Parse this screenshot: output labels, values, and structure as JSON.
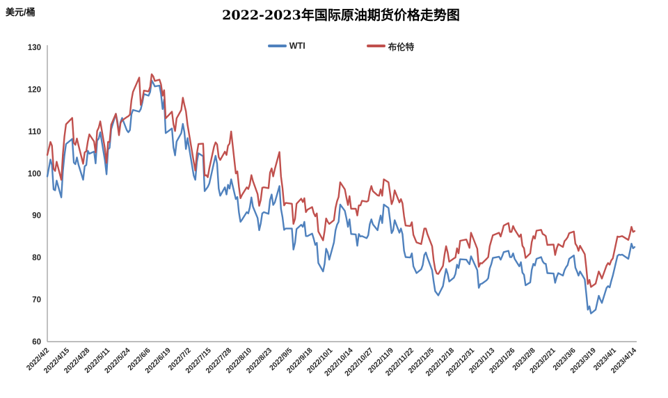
{
  "chart_data": {
    "type": "line",
    "title": "2022-2023年国际原油期货价格走势图",
    "unit": "美元/桶",
    "xlabel": "",
    "ylabel": "美元/桶",
    "ylim": [
      60,
      130
    ],
    "y_ticks": [
      60,
      70,
      80,
      90,
      100,
      110,
      120,
      130
    ],
    "grid": false,
    "legend_position": "top-center",
    "x_tick_labels": [
      "2022/4/2",
      "2022/4/15",
      "2022/4/28",
      "2022/5/11",
      "2022/5/24",
      "2022/6/6",
      "2022/6/19",
      "2022/7/2",
      "2022/7/15",
      "2022/7/28",
      "2022/8/10",
      "2022/8/23",
      "2022/9/5",
      "2022/9/18",
      "2022/10/1",
      "2022/10/14",
      "2022/10/27",
      "2022/11/9",
      "2022/11/22",
      "2022/12/5",
      "2022/12/18",
      "2022/12/31",
      "2023/1/13",
      "2023/1/26",
      "2023/2/8",
      "2023/2/21",
      "2023/3/6",
      "2023/3/19",
      "2023/4/1",
      "2023/4/14"
    ],
    "x_tick_interval_days": 13,
    "x_range": [
      "2022/4/2",
      "2023/4/14"
    ],
    "dates": [
      "2022/4/1",
      "2022/4/4",
      "2022/4/5",
      "2022/4/6",
      "2022/4/7",
      "2022/4/8",
      "2022/4/11",
      "2022/4/12",
      "2022/4/13",
      "2022/4/14",
      "2022/4/18",
      "2022/4/19",
      "2022/4/20",
      "2022/4/21",
      "2022/4/22",
      "2022/4/25",
      "2022/4/26",
      "2022/4/27",
      "2022/4/28",
      "2022/4/29",
      "2022/5/2",
      "2022/5/3",
      "2022/5/4",
      "2022/5/5",
      "2022/5/6",
      "2022/5/9",
      "2022/5/10",
      "2022/5/11",
      "2022/5/12",
      "2022/5/13",
      "2022/5/16",
      "2022/5/17",
      "2022/5/18",
      "2022/5/19",
      "2022/5/20",
      "2022/5/23",
      "2022/5/24",
      "2022/5/25",
      "2022/5/26",
      "2022/5/27",
      "2022/5/31",
      "2022/6/1",
      "2022/6/2",
      "2022/6/3",
      "2022/6/6",
      "2022/6/7",
      "2022/6/8",
      "2022/6/9",
      "2022/6/10",
      "2022/6/13",
      "2022/6/14",
      "2022/6/15",
      "2022/6/16",
      "2022/6/17",
      "2022/6/21",
      "2022/6/22",
      "2022/6/23",
      "2022/6/24",
      "2022/6/27",
      "2022/6/28",
      "2022/6/29",
      "2022/6/30",
      "2022/7/1",
      "2022/7/5",
      "2022/7/6",
      "2022/7/7",
      "2022/7/8",
      "2022/7/11",
      "2022/7/12",
      "2022/7/13",
      "2022/7/14",
      "2022/7/15",
      "2022/7/18",
      "2022/7/19",
      "2022/7/20",
      "2022/7/21",
      "2022/7/22",
      "2022/7/25",
      "2022/7/26",
      "2022/7/27",
      "2022/7/28",
      "2022/7/29",
      "2022/8/1",
      "2022/8/2",
      "2022/8/3",
      "2022/8/4",
      "2022/8/5",
      "2022/8/8",
      "2022/8/9",
      "2022/8/10",
      "2022/8/11",
      "2022/8/12",
      "2022/8/15",
      "2022/8/16",
      "2022/8/17",
      "2022/8/18",
      "2022/8/19",
      "2022/8/22",
      "2022/8/23",
      "2022/8/24",
      "2022/8/25",
      "2022/8/26",
      "2022/8/29",
      "2022/8/30",
      "2022/8/31",
      "2022/9/1",
      "2022/9/2",
      "2022/9/6",
      "2022/9/7",
      "2022/9/8",
      "2022/9/9",
      "2022/9/12",
      "2022/9/13",
      "2022/9/14",
      "2022/9/15",
      "2022/9/16",
      "2022/9/19",
      "2022/9/20",
      "2022/9/21",
      "2022/9/22",
      "2022/9/23",
      "2022/9/26",
      "2022/9/27",
      "2022/9/28",
      "2022/9/29",
      "2022/9/30",
      "2022/10/3",
      "2022/10/4",
      "2022/10/5",
      "2022/10/6",
      "2022/10/7",
      "2022/10/10",
      "2022/10/11",
      "2022/10/12",
      "2022/10/13",
      "2022/10/14",
      "2022/10/17",
      "2022/10/18",
      "2022/10/19",
      "2022/10/20",
      "2022/10/21",
      "2022/10/24",
      "2022/10/25",
      "2022/10/26",
      "2022/10/27",
      "2022/10/28",
      "2022/10/31",
      "2022/11/1",
      "2022/11/2",
      "2022/11/3",
      "2022/11/4",
      "2022/11/7",
      "2022/11/8",
      "2022/11/9",
      "2022/11/10",
      "2022/11/11",
      "2022/11/14",
      "2022/11/15",
      "2022/11/16",
      "2022/11/17",
      "2022/11/18",
      "2022/11/21",
      "2022/11/22",
      "2022/11/23",
      "2022/11/25",
      "2022/11/28",
      "2022/11/29",
      "2022/11/30",
      "2022/12/1",
      "2022/12/2",
      "2022/12/5",
      "2022/12/6",
      "2022/12/7",
      "2022/12/8",
      "2022/12/9",
      "2022/12/12",
      "2022/12/13",
      "2022/12/14",
      "2022/12/15",
      "2022/12/16",
      "2022/12/19",
      "2022/12/20",
      "2022/12/21",
      "2022/12/22",
      "2022/12/23",
      "2022/12/27",
      "2022/12/28",
      "2022/12/29",
      "2022/12/30",
      "2023/1/3",
      "2023/1/4",
      "2023/1/5",
      "2023/1/6",
      "2023/1/9",
      "2023/1/10",
      "2023/1/11",
      "2023/1/12",
      "2023/1/13",
      "2023/1/17",
      "2023/1/18",
      "2023/1/19",
      "2023/1/20",
      "2023/1/23",
      "2023/1/24",
      "2023/1/25",
      "2023/1/26",
      "2023/1/27",
      "2023/1/30",
      "2023/1/31",
      "2023/2/1",
      "2023/2/2",
      "2023/2/3",
      "2023/2/6",
      "2023/2/7",
      "2023/2/8",
      "2023/2/9",
      "2023/2/10",
      "2023/2/13",
      "2023/2/14",
      "2023/2/15",
      "2023/2/16",
      "2023/2/17",
      "2023/2/21",
      "2023/2/22",
      "2023/2/23",
      "2023/2/24",
      "2023/2/27",
      "2023/2/28",
      "2023/3/1",
      "2023/3/2",
      "2023/3/3",
      "2023/3/6",
      "2023/3/7",
      "2023/3/8",
      "2023/3/9",
      "2023/3/10",
      "2023/3/13",
      "2023/3/14",
      "2023/3/15",
      "2023/3/16",
      "2023/3/17",
      "2023/3/20",
      "2023/3/21",
      "2023/3/22",
      "2023/3/23",
      "2023/3/24",
      "2023/3/27",
      "2023/3/28",
      "2023/3/29",
      "2023/3/30",
      "2023/3/31",
      "2023/4/3",
      "2023/4/4",
      "2023/4/5",
      "2023/4/6",
      "2023/4/10",
      "2023/4/11",
      "2023/4/12",
      "2023/4/13",
      "2023/4/14"
    ],
    "series": [
      {
        "name": "WTI",
        "color": "#4F81BD",
        "values": [
          99.3,
          103.3,
          102.0,
          96.2,
          96.0,
          98.3,
          94.3,
          100.6,
          104.3,
          107.0,
          108.2,
          102.6,
          102.2,
          103.8,
          102.1,
          98.5,
          101.7,
          102.0,
          105.4,
          104.7,
          105.2,
          102.4,
          107.8,
          108.3,
          109.8,
          103.1,
          99.8,
          105.7,
          106.1,
          110.5,
          114.2,
          112.4,
          109.6,
          112.2,
          113.2,
          110.3,
          109.8,
          110.3,
          114.1,
          115.1,
          114.7,
          115.3,
          116.9,
          118.9,
          118.5,
          119.4,
          122.1,
          121.5,
          120.7,
          120.9,
          118.9,
          115.3,
          117.6,
          109.6,
          110.7,
          106.2,
          104.3,
          107.6,
          109.6,
          111.8,
          109.8,
          105.8,
          108.4,
          99.5,
          98.5,
          102.7,
          104.8,
          104.1,
          95.8,
          96.3,
          96.8,
          97.6,
          102.6,
          104.2,
          102.3,
          96.4,
          94.7,
          96.7,
          95.0,
          97.3,
          96.4,
          98.6,
          93.9,
          94.4,
          90.7,
          88.5,
          89.0,
          90.8,
          90.5,
          91.9,
          94.3,
          92.1,
          89.4,
          86.5,
          88.1,
          90.5,
          90.8,
          90.4,
          93.7,
          95.0,
          92.5,
          93.1,
          97.0,
          91.6,
          89.6,
          86.6,
          86.9,
          86.9,
          81.9,
          83.5,
          86.8,
          87.8,
          87.3,
          88.5,
          85.1,
          85.1,
          85.7,
          84.5,
          83.0,
          83.5,
          78.7,
          76.7,
          78.5,
          82.1,
          81.2,
          79.5,
          83.6,
          86.5,
          87.8,
          88.5,
          92.6,
          91.1,
          89.4,
          87.3,
          89.1,
          85.6,
          85.5,
          82.8,
          85.6,
          85.0,
          85.1,
          84.6,
          85.3,
          87.9,
          89.1,
          87.9,
          86.5,
          88.4,
          90.0,
          88.2,
          92.6,
          91.8,
          89.0,
          85.8,
          86.5,
          88.9,
          85.9,
          86.9,
          85.6,
          81.6,
          80.1,
          80.0,
          81.0,
          77.9,
          76.3,
          77.2,
          78.2,
          80.6,
          81.2,
          80.0,
          77.0,
          74.3,
          72.0,
          71.5,
          71.0,
          73.2,
          75.4,
          77.3,
          76.1,
          74.3,
          75.2,
          76.1,
          78.3,
          77.5,
          79.6,
          79.5,
          78.9,
          78.4,
          80.3,
          77.0,
          72.8,
          73.7,
          73.8,
          74.6,
          75.1,
          77.4,
          78.4,
          79.9,
          80.2,
          79.5,
          80.3,
          81.3,
          81.6,
          80.1,
          80.1,
          81.0,
          79.7,
          77.9,
          78.9,
          76.4,
          75.9,
          73.4,
          74.1,
          77.1,
          78.5,
          78.1,
          79.7,
          80.1,
          79.1,
          78.6,
          78.5,
          76.3,
          76.2,
          74.0,
          75.4,
          76.3,
          75.7,
          77.0,
          77.7,
          78.2,
          79.7,
          80.5,
          77.6,
          76.7,
          75.7,
          76.7,
          74.8,
          71.3,
          67.6,
          68.4,
          66.7,
          67.6,
          69.3,
          70.9,
          70.0,
          69.2,
          72.8,
          73.2,
          72.9,
          74.4,
          75.7,
          80.4,
          80.7,
          80.6,
          80.7,
          79.7,
          81.5,
          83.3,
          82.2,
          82.5
        ]
      },
      {
        "name": "布伦特",
        "color": "#C0504D",
        "values": [
          104.4,
          107.5,
          106.6,
          101.1,
          100.6,
          102.8,
          98.5,
          104.6,
          108.8,
          111.7,
          113.2,
          107.3,
          106.8,
          108.3,
          106.7,
          102.3,
          105.0,
          105.3,
          107.6,
          109.3,
          107.6,
          105.0,
          110.1,
          110.9,
          112.4,
          105.9,
          102.5,
          107.5,
          107.5,
          111.6,
          114.2,
          111.9,
          109.1,
          112.0,
          112.6,
          113.4,
          113.6,
          114.0,
          117.4,
          119.4,
          122.8,
          116.3,
          117.6,
          119.7,
          119.5,
          120.6,
          123.6,
          123.1,
          122.0,
          122.3,
          121.2,
          118.5,
          119.8,
          113.1,
          114.7,
          111.7,
          110.1,
          113.1,
          115.1,
          118.0,
          116.3,
          114.8,
          111.6,
          102.8,
          100.7,
          104.7,
          107.0,
          107.1,
          99.5,
          99.6,
          99.1,
          101.2,
          106.3,
          107.4,
          106.9,
          103.9,
          103.2,
          105.2,
          104.4,
          106.6,
          107.1,
          110.0,
          100.0,
          100.5,
          96.8,
          94.1,
          94.9,
          96.7,
          96.3,
          97.4,
          99.6,
          98.2,
          95.1,
          92.3,
          93.7,
          96.6,
          96.7,
          96.5,
          100.2,
          101.2,
          99.3,
          101.0,
          105.1,
          99.3,
          96.5,
          92.4,
          93.0,
          92.8,
          88.0,
          89.2,
          92.8,
          94.0,
          93.2,
          94.1,
          90.8,
          91.4,
          92.0,
          90.6,
          89.8,
          90.5,
          86.2,
          84.1,
          86.3,
          89.3,
          88.5,
          88.0,
          88.9,
          91.8,
          93.4,
          94.4,
          97.9,
          96.2,
          94.3,
          92.5,
          94.6,
          91.6,
          91.6,
          90.0,
          92.4,
          92.4,
          93.5,
          93.3,
          93.5,
          95.7,
          97.0,
          95.8,
          94.8,
          94.7,
          96.2,
          94.7,
          98.6,
          97.9,
          95.4,
          92.7,
          93.7,
          96.0,
          93.1,
          93.9,
          92.9,
          89.8,
          87.6,
          87.5,
          88.4,
          85.4,
          83.6,
          83.2,
          85.0,
          86.9,
          86.9,
          85.6,
          82.7,
          79.4,
          77.2,
          76.2,
          76.1,
          78.0,
          80.7,
          82.7,
          81.2,
          79.0,
          79.8,
          80.0,
          82.2,
          81.0,
          84.0,
          84.3,
          83.3,
          82.3,
          85.9,
          82.1,
          77.8,
          78.7,
          78.6,
          79.7,
          80.1,
          82.7,
          84.0,
          85.3,
          85.9,
          85.0,
          86.2,
          87.6,
          88.2,
          86.1,
          86.1,
          87.5,
          86.7,
          84.9,
          85.5,
          82.8,
          82.2,
          79.9,
          81.0,
          83.7,
          85.1,
          84.5,
          86.4,
          86.6,
          85.6,
          85.4,
          85.1,
          83.0,
          83.1,
          80.6,
          82.2,
          83.2,
          82.5,
          83.9,
          84.3,
          84.8,
          85.8,
          86.2,
          83.3,
          82.7,
          81.6,
          82.8,
          80.8,
          77.5,
          73.7,
          74.7,
          73.0,
          73.8,
          75.3,
          76.7,
          75.9,
          75.0,
          78.1,
          78.7,
          78.3,
          79.3,
          79.8,
          85.0,
          84.9,
          85.0,
          85.1,
          84.2,
          85.6,
          87.3,
          86.1,
          86.3
        ]
      }
    ]
  }
}
